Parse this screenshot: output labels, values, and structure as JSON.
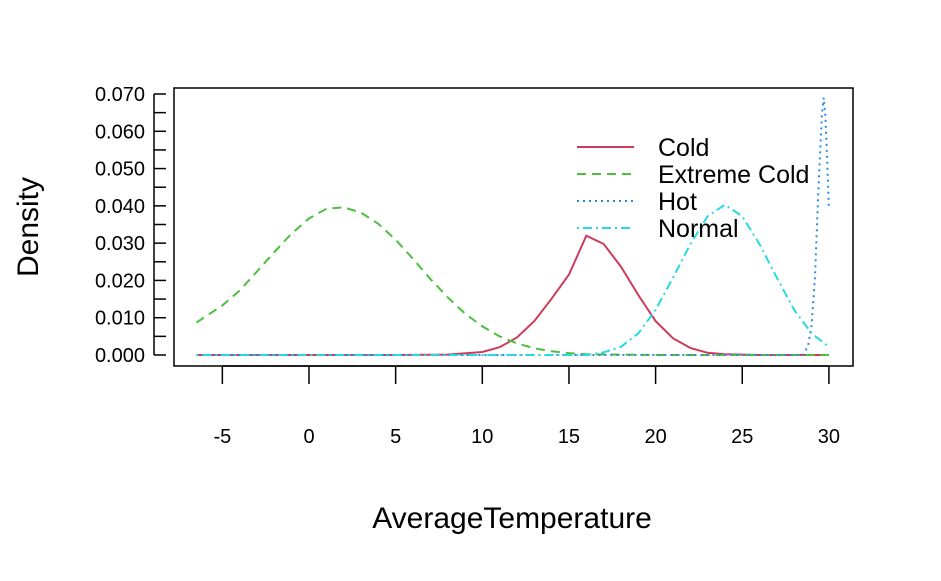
{
  "chart_data": {
    "type": "line",
    "title": "",
    "xlabel": "AverageTemperature",
    "ylabel": "Density",
    "xlim": [
      -6.5,
      30
    ],
    "ylim": [
      0,
      0.07
    ],
    "x_ticks": [
      -5,
      0,
      5,
      10,
      15,
      20,
      25,
      30
    ],
    "x_tick_labels": [
      "-5",
      "0",
      "5",
      "10",
      "15",
      "20",
      "25",
      "30"
    ],
    "y_ticks": [
      0,
      0.01,
      0.02,
      0.03,
      0.04,
      0.05,
      0.06,
      0.07
    ],
    "y_tick_labels": [
      "0.000",
      "0.010",
      "0.020",
      "0.030",
      "0.040",
      "0.050",
      "0.060",
      "0.070"
    ],
    "grid": false,
    "legend_position": "top-right",
    "series": [
      {
        "name": "Cold",
        "color": "#cd3b5b",
        "dash": "solid",
        "x": [
          -6.5,
          5,
          8,
          10,
          11,
          12,
          13,
          14,
          15,
          16,
          17,
          18,
          19,
          20,
          21,
          22,
          23,
          24,
          25,
          26,
          30
        ],
        "y": [
          0,
          0,
          0.0001,
          0.0008,
          0.0021,
          0.0047,
          0.0091,
          0.0151,
          0.0216,
          0.032,
          0.0298,
          0.0237,
          0.0161,
          0.0091,
          0.0045,
          0.0019,
          0.0006,
          0.0002,
          0.0001,
          0,
          0
        ]
      },
      {
        "name": "Extreme Cold",
        "color": "#4dbf3f",
        "dash": "dashed",
        "x": [
          -6.5,
          -5,
          -4,
          -3,
          -2,
          -1,
          0,
          1,
          2,
          3,
          4,
          5,
          6,
          7,
          8,
          9,
          10,
          11,
          12,
          13,
          14,
          15,
          16,
          18,
          20,
          30
        ],
        "y": [
          0.0087,
          0.0133,
          0.0173,
          0.0224,
          0.0276,
          0.0326,
          0.0366,
          0.0392,
          0.0396,
          0.0382,
          0.0352,
          0.0309,
          0.0258,
          0.0204,
          0.0155,
          0.0111,
          0.0077,
          0.005,
          0.0031,
          0.0018,
          0.001,
          0.0005,
          0.0002,
          0.0001,
          0,
          0
        ]
      },
      {
        "name": "Hot",
        "color": "#2e8ae0",
        "dash": "dotted",
        "x": [
          -6.5,
          28.5,
          28.8,
          29.0,
          29.2,
          29.4,
          29.6,
          29.7,
          29.8,
          29.9,
          30.0
        ],
        "y": [
          0,
          0,
          0.0025,
          0.008,
          0.021,
          0.045,
          0.065,
          0.069,
          0.064,
          0.052,
          0.039
        ]
      },
      {
        "name": "Normal",
        "color": "#27d9e3",
        "dash": "dotdash",
        "x": [
          -6.5,
          16,
          17,
          18,
          19,
          20,
          21,
          22,
          23,
          24,
          25,
          26,
          27,
          28,
          29,
          30
        ],
        "y": [
          0,
          0,
          0.0007,
          0.0022,
          0.0058,
          0.0121,
          0.0207,
          0.0297,
          0.0372,
          0.0403,
          0.0372,
          0.0297,
          0.0207,
          0.0121,
          0.0058,
          0.0022
        ]
      }
    ]
  }
}
